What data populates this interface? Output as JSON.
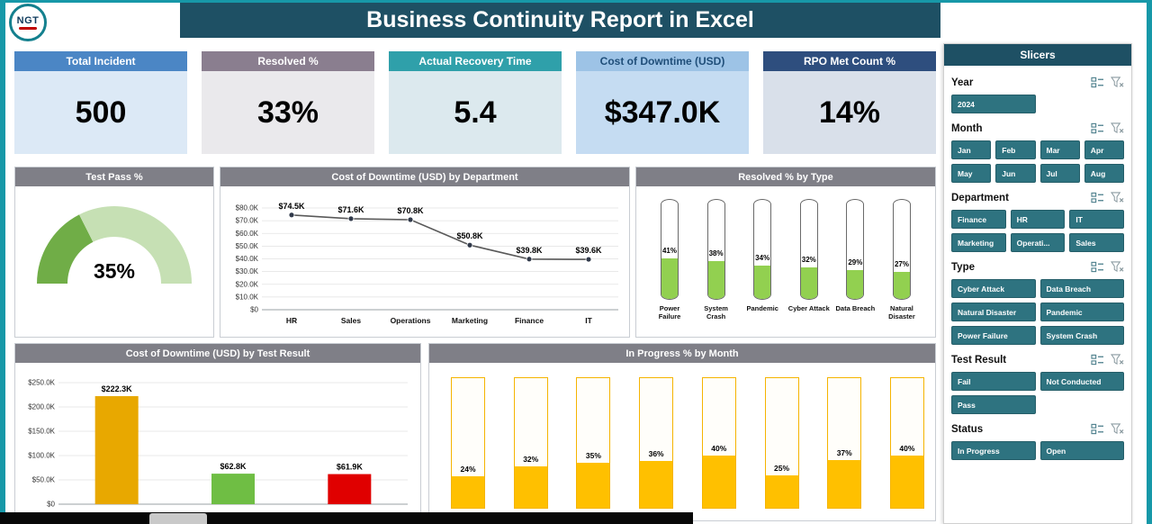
{
  "header": {
    "title": "Business Continuity Report in Excel",
    "logo_text": "NGT"
  },
  "kpis": [
    {
      "label": "Total Incident",
      "value": "500",
      "header_bg": "#4B86C5",
      "body_bg": "#DCE9F6"
    },
    {
      "label": "Resolved %",
      "value": "33%",
      "header_bg": "#8A7E8F",
      "body_bg": "#EAE9EC"
    },
    {
      "label": "Actual Recovery Time",
      "value": "5.4",
      "header_bg": "#2FA0AA",
      "body_bg": "#DCE9EE"
    },
    {
      "label": "Cost of Downtime (USD)",
      "value": "$347.0K",
      "header_bg": "#9DC3E6",
      "header_fg": "#1F4E79",
      "body_bg": "#C5DCF2"
    },
    {
      "label": "RPO Met Count %",
      "value": "14%",
      "header_bg": "#2E4E7E",
      "body_bg": "#D9E0EA"
    }
  ],
  "slicers": {
    "panel_title": "Slicers",
    "button_color": "#2E7380",
    "sections": [
      {
        "name": "Year",
        "cols": 2,
        "items": [
          "2024"
        ]
      },
      {
        "name": "Month",
        "cols": 4,
        "items": [
          "Jan",
          "Feb",
          "Mar",
          "Apr",
          "May",
          "Jun",
          "Jul",
          "Aug"
        ]
      },
      {
        "name": "Department",
        "cols": 3,
        "items": [
          "Finance",
          "HR",
          "IT",
          "Marketing",
          "Operati...",
          "Sales"
        ]
      },
      {
        "name": "Type",
        "cols": 2,
        "items": [
          "Cyber Attack",
          "Data Breach",
          "Natural Disaster",
          "Pandemic",
          "Power Failure",
          "System Crash"
        ]
      },
      {
        "name": "Test Result",
        "cols": 2,
        "items": [
          "Fail",
          "Not Conducted",
          "Pass"
        ]
      },
      {
        "name": "Status",
        "cols": 2,
        "items": [
          "In Progress",
          "Open"
        ]
      }
    ]
  },
  "chart_data": [
    {
      "id": "gauge",
      "type": "pie",
      "title": "Test Pass %",
      "value": 35,
      "label": "35%",
      "fill_color": "#70AD47",
      "rest_color": "#C6E0B4"
    },
    {
      "id": "dept_line",
      "type": "line",
      "title": "Cost of Downtime (USD) by Department",
      "categories": [
        "HR",
        "Sales",
        "Operations",
        "Marketing",
        "Finance",
        "IT"
      ],
      "values": [
        74.5,
        71.6,
        70.8,
        50.8,
        39.8,
        39.6
      ],
      "data_labels": [
        "$74.5K",
        "$71.6K",
        "$70.8K",
        "$50.8K",
        "$39.8K",
        "$39.6K"
      ],
      "ylim": [
        0,
        80
      ],
      "yticks": [
        "$0",
        "$10.0K",
        "$20.0K",
        "$30.0K",
        "$40.0K",
        "$50.0K",
        "$60.0K",
        "$70.0K",
        "$80.0K"
      ],
      "line_color": "#595959",
      "grid": true,
      "legend": "none"
    },
    {
      "id": "resolved_type",
      "type": "bar",
      "title": "Resolved % by Type",
      "categories": [
        "Power Failure",
        "System Crash",
        "Pandemic",
        "Cyber Attack",
        "Data Breach",
        "Natural Disaster"
      ],
      "values": [
        41,
        38,
        34,
        32,
        29,
        27
      ],
      "labels": [
        "41%",
        "38%",
        "34%",
        "32%",
        "29%",
        "27%"
      ],
      "fill_color": "#92D050",
      "ylim": [
        0,
        100
      ]
    },
    {
      "id": "test_result",
      "type": "bar",
      "title": "Cost of Downtime (USD) by Test Result",
      "categories": [
        "",
        "",
        ""
      ],
      "values": [
        222.3,
        62.8,
        61.9
      ],
      "data_labels": [
        "$222.3K",
        "$62.8K",
        "$61.9K"
      ],
      "bar_colors": [
        "#E8A800",
        "#6FBE44",
        "#E00000"
      ],
      "ylim": [
        0,
        250
      ],
      "yticks": [
        "$0",
        "$50.0K",
        "$100.0K",
        "$150.0K",
        "$200.0K",
        "$250.0K"
      ],
      "grid": true
    },
    {
      "id": "inprogress_month",
      "type": "bar",
      "title": "In Progress % by Month",
      "values": [
        24,
        32,
        35,
        36,
        40,
        25,
        37,
        40
      ],
      "labels": [
        "24%",
        "32%",
        "35%",
        "36%",
        "40%",
        "25%",
        "37%",
        "40%"
      ],
      "fill_color": "#FFC000",
      "outline_color": "#F5B400",
      "ylim": [
        0,
        100
      ]
    }
  ],
  "colors": {
    "frame_border": "#1798A8",
    "banner_bg": "#1E5064",
    "panel_header_bg": "#7F7F87",
    "slicer_accent": "#2E7380",
    "gauge_fill": "#70AD47",
    "gauge_rest": "#C6E0B4",
    "gold": "#E8A800",
    "green": "#6FBE44",
    "red": "#E00000",
    "column_gold": "#FFC000",
    "footer_bg": "#070707"
  }
}
